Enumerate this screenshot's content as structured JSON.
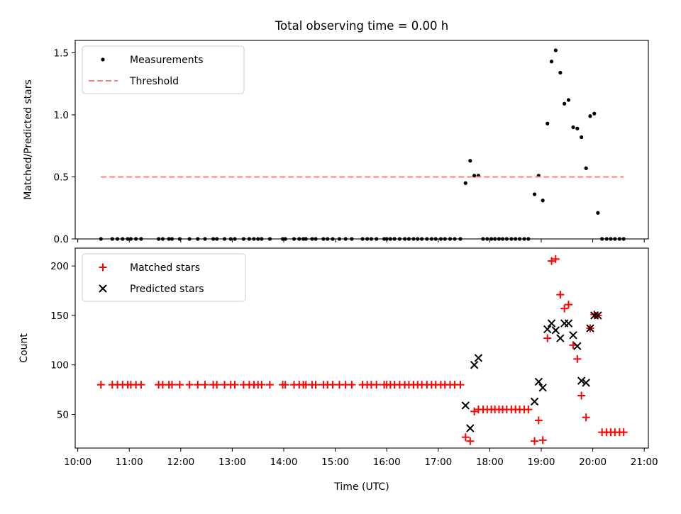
{
  "figure_title": "Total observing time = 0.00 h",
  "colors": {
    "matched": "#ff0000",
    "predicted": "#000000",
    "threshold": "#ff7f7f",
    "measurement": "#000000"
  },
  "chart_data": [
    {
      "type": "scatter",
      "panel": "top",
      "title": "Total observing time = 0.00 h",
      "xlabel": "",
      "ylabel": "Matched/Predicted stars",
      "xlim": [
        9.95,
        21.08
      ],
      "ylim": [
        0,
        1.6
      ],
      "yticks": [
        0.0,
        0.5,
        1.0,
        1.5
      ],
      "ytick_labels": [
        "0.0",
        "0.5",
        "1.0",
        "1.5"
      ],
      "xticks": [
        10,
        11,
        12,
        13,
        14,
        15,
        16,
        17,
        18,
        19,
        20,
        21
      ],
      "grid": false,
      "legend_position": "top-left",
      "series": [
        {
          "name": "Measurements",
          "marker": "dot",
          "points": [
            [
              10.45,
              0
            ],
            [
              10.67,
              0
            ],
            [
              10.77,
              0
            ],
            [
              10.87,
              0
            ],
            [
              10.97,
              0
            ],
            [
              11.03,
              0
            ],
            [
              11.13,
              0
            ],
            [
              11.23,
              0
            ],
            [
              11.57,
              0
            ],
            [
              11.65,
              0
            ],
            [
              11.77,
              0
            ],
            [
              11.83,
              0
            ],
            [
              11.98,
              0
            ],
            [
              12.17,
              0
            ],
            [
              12.33,
              0
            ],
            [
              12.47,
              0
            ],
            [
              12.63,
              0
            ],
            [
              12.7,
              0
            ],
            [
              12.85,
              0
            ],
            [
              12.97,
              0
            ],
            [
              13.05,
              0
            ],
            [
              13.22,
              0
            ],
            [
              13.33,
              0
            ],
            [
              13.42,
              0
            ],
            [
              13.5,
              0
            ],
            [
              13.57,
              0
            ],
            [
              13.73,
              0
            ],
            [
              13.98,
              0
            ],
            [
              14.03,
              0
            ],
            [
              14.2,
              0
            ],
            [
              14.3,
              0
            ],
            [
              14.38,
              0
            ],
            [
              14.43,
              0
            ],
            [
              14.55,
              0
            ],
            [
              14.62,
              0
            ],
            [
              14.77,
              0
            ],
            [
              14.85,
              0
            ],
            [
              14.95,
              0
            ],
            [
              15.08,
              0
            ],
            [
              15.2,
              0
            ],
            [
              15.32,
              0
            ],
            [
              15.53,
              0
            ],
            [
              15.62,
              0
            ],
            [
              15.7,
              0
            ],
            [
              15.8,
              0
            ],
            [
              15.95,
              0
            ],
            [
              16.0,
              0
            ],
            [
              16.07,
              0
            ],
            [
              16.15,
              0
            ],
            [
              16.25,
              0
            ],
            [
              16.35,
              0
            ],
            [
              16.43,
              0
            ],
            [
              16.52,
              0
            ],
            [
              16.6,
              0
            ],
            [
              16.68,
              0
            ],
            [
              16.78,
              0
            ],
            [
              16.87,
              0
            ],
            [
              16.95,
              0
            ],
            [
              17.05,
              0
            ],
            [
              17.13,
              0
            ],
            [
              17.23,
              0
            ],
            [
              17.32,
              0
            ],
            [
              17.43,
              0
            ],
            [
              17.53,
              0.45
            ],
            [
              17.62,
              0.63
            ],
            [
              17.7,
              0.51
            ],
            [
              17.78,
              0.51
            ],
            [
              17.87,
              0
            ],
            [
              17.95,
              0
            ],
            [
              18.03,
              0
            ],
            [
              18.1,
              0
            ],
            [
              18.18,
              0
            ],
            [
              18.25,
              0
            ],
            [
              18.33,
              0
            ],
            [
              18.42,
              0
            ],
            [
              18.5,
              0
            ],
            [
              18.58,
              0
            ],
            [
              18.67,
              0
            ],
            [
              18.75,
              0
            ],
            [
              18.87,
              0.36
            ],
            [
              18.95,
              0.51
            ],
            [
              19.03,
              0.31
            ],
            [
              19.12,
              0.93
            ],
            [
              19.2,
              1.43
            ],
            [
              19.28,
              1.52
            ],
            [
              19.37,
              1.34
            ],
            [
              19.45,
              1.09
            ],
            [
              19.53,
              1.12
            ],
            [
              19.62,
              0.9
            ],
            [
              19.7,
              0.89
            ],
            [
              19.78,
              0.82
            ],
            [
              19.87,
              0.57
            ],
            [
              19.95,
              0.99
            ],
            [
              20.03,
              1.01
            ],
            [
              20.1,
              0.21
            ],
            [
              20.18,
              0
            ],
            [
              20.27,
              0
            ],
            [
              20.35,
              0
            ],
            [
              20.43,
              0
            ],
            [
              20.52,
              0
            ],
            [
              20.6,
              0
            ]
          ]
        },
        {
          "name": "Threshold",
          "marker": "dashed-line",
          "points": [
            [
              10.45,
              0.5
            ],
            [
              20.6,
              0.5
            ]
          ]
        }
      ]
    },
    {
      "type": "scatter",
      "panel": "bottom",
      "title": "",
      "xlabel": "Time (UTC)",
      "ylabel": "Count",
      "xlim": [
        9.95,
        21.08
      ],
      "ylim": [
        16,
        218
      ],
      "yticks": [
        50,
        100,
        150,
        200
      ],
      "ytick_labels": [
        "50",
        "100",
        "150",
        "200"
      ],
      "xticks": [
        10,
        11,
        12,
        13,
        14,
        15,
        16,
        17,
        18,
        19,
        20,
        21
      ],
      "xtick_labels": [
        "10:00",
        "11:00",
        "12:00",
        "13:00",
        "14:00",
        "15:00",
        "16:00",
        "17:00",
        "18:00",
        "19:00",
        "20:00",
        "21:00"
      ],
      "grid": false,
      "legend_position": "top-left",
      "series": [
        {
          "name": "Matched stars",
          "marker": "plus",
          "points": [
            [
              10.45,
              80
            ],
            [
              10.67,
              80
            ],
            [
              10.77,
              80
            ],
            [
              10.87,
              80
            ],
            [
              10.97,
              80
            ],
            [
              11.03,
              80
            ],
            [
              11.13,
              80
            ],
            [
              11.23,
              80
            ],
            [
              11.57,
              80
            ],
            [
              11.65,
              80
            ],
            [
              11.77,
              80
            ],
            [
              11.83,
              80
            ],
            [
              11.98,
              80
            ],
            [
              12.17,
              80
            ],
            [
              12.33,
              80
            ],
            [
              12.47,
              80
            ],
            [
              12.63,
              80
            ],
            [
              12.7,
              80
            ],
            [
              12.85,
              80
            ],
            [
              12.97,
              80
            ],
            [
              13.05,
              80
            ],
            [
              13.22,
              80
            ],
            [
              13.33,
              80
            ],
            [
              13.42,
              80
            ],
            [
              13.5,
              80
            ],
            [
              13.57,
              80
            ],
            [
              13.73,
              80
            ],
            [
              13.98,
              80
            ],
            [
              14.03,
              80
            ],
            [
              14.2,
              80
            ],
            [
              14.3,
              80
            ],
            [
              14.38,
              80
            ],
            [
              14.43,
              80
            ],
            [
              14.55,
              80
            ],
            [
              14.62,
              80
            ],
            [
              14.77,
              80
            ],
            [
              14.85,
              80
            ],
            [
              14.95,
              80
            ],
            [
              15.08,
              80
            ],
            [
              15.2,
              80
            ],
            [
              15.32,
              80
            ],
            [
              15.53,
              80
            ],
            [
              15.62,
              80
            ],
            [
              15.7,
              80
            ],
            [
              15.8,
              80
            ],
            [
              15.95,
              80
            ],
            [
              16.0,
              80
            ],
            [
              16.07,
              80
            ],
            [
              16.15,
              80
            ],
            [
              16.25,
              80
            ],
            [
              16.35,
              80
            ],
            [
              16.43,
              80
            ],
            [
              16.52,
              80
            ],
            [
              16.6,
              80
            ],
            [
              16.68,
              80
            ],
            [
              16.78,
              80
            ],
            [
              16.87,
              80
            ],
            [
              16.95,
              80
            ],
            [
              17.05,
              80
            ],
            [
              17.13,
              80
            ],
            [
              17.23,
              80
            ],
            [
              17.32,
              80
            ],
            [
              17.43,
              80
            ],
            [
              17.53,
              27
            ],
            [
              17.62,
              23
            ],
            [
              17.7,
              53
            ],
            [
              17.78,
              55
            ],
            [
              17.87,
              55
            ],
            [
              17.95,
              55
            ],
            [
              18.03,
              55
            ],
            [
              18.1,
              55
            ],
            [
              18.18,
              55
            ],
            [
              18.25,
              55
            ],
            [
              18.33,
              55
            ],
            [
              18.42,
              55
            ],
            [
              18.5,
              55
            ],
            [
              18.58,
              55
            ],
            [
              18.67,
              55
            ],
            [
              18.75,
              55
            ],
            [
              18.87,
              23
            ],
            [
              18.95,
              44
            ],
            [
              19.03,
              24
            ],
            [
              19.12,
              127
            ],
            [
              19.2,
              205
            ],
            [
              19.28,
              207
            ],
            [
              19.37,
              171
            ],
            [
              19.45,
              157
            ],
            [
              19.53,
              161
            ],
            [
              19.62,
              120
            ],
            [
              19.7,
              106
            ],
            [
              19.78,
              69
            ],
            [
              19.87,
              47
            ],
            [
              19.95,
              137
            ],
            [
              20.03,
              151
            ],
            [
              20.1,
              150
            ],
            [
              20.18,
              32
            ],
            [
              20.27,
              32
            ],
            [
              20.35,
              32
            ],
            [
              20.43,
              32
            ],
            [
              20.52,
              32
            ],
            [
              20.6,
              32
            ]
          ]
        },
        {
          "name": "Predicted stars",
          "marker": "x",
          "points": [
            [
              17.53,
              59
            ],
            [
              17.62,
              36
            ],
            [
              17.7,
              100
            ],
            [
              17.78,
              107
            ],
            [
              18.87,
              63
            ],
            [
              18.95,
              83
            ],
            [
              19.03,
              77
            ],
            [
              19.12,
              136
            ],
            [
              19.2,
              142
            ],
            [
              19.28,
              135
            ],
            [
              19.37,
              127
            ],
            [
              19.45,
              142
            ],
            [
              19.53,
              142
            ],
            [
              19.62,
              130
            ],
            [
              19.7,
              119
            ],
            [
              19.78,
              84
            ],
            [
              19.87,
              82
            ],
            [
              19.95,
              137
            ],
            [
              20.03,
              150
            ],
            [
              20.1,
              150
            ]
          ]
        }
      ]
    }
  ]
}
